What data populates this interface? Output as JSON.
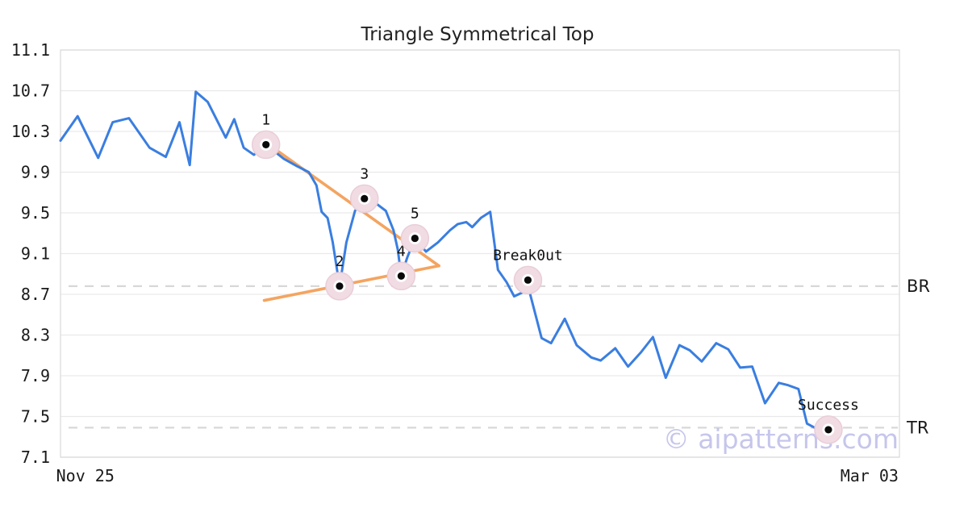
{
  "page": {
    "title": "Triangle Symmetrical Top",
    "watermark": "© aipatterns.com"
  },
  "colors": {
    "price_line": "#3a7ee0",
    "trendline": "#f4a460",
    "grid": "#e9e9e9",
    "spine": "#d9d9d9",
    "dashed_level": "#d8d8d8",
    "marker_halo": "#f1dce3",
    "marker_halo_edge": "#e9cdd8",
    "marker_dot": "#0a0a0a",
    "text": "#1a1a1a",
    "watermark": "#b8b8e8"
  },
  "chart_data": {
    "type": "line",
    "title": "Triangle Symmetrical Top",
    "xlabel": "",
    "ylabel": "",
    "grid": "horizontal",
    "legend": "none",
    "xlim": [
      0,
      98
    ],
    "ylim": [
      7.1,
      11.1
    ],
    "x_ticks": [
      {
        "label": "Nov 25",
        "day": 2.9
      },
      {
        "label": "Mar 03",
        "day": 94.5
      }
    ],
    "y_ticks": [
      11.1,
      10.7,
      10.3,
      9.9,
      9.5,
      9.1,
      8.7,
      8.3,
      7.9,
      7.5,
      7.1
    ],
    "series": [
      {
        "name": "price",
        "points": [
          [
            0,
            10.21
          ],
          [
            2,
            10.45
          ],
          [
            4.4,
            10.04
          ],
          [
            6.1,
            10.39
          ],
          [
            8,
            10.43
          ],
          [
            10.4,
            10.14
          ],
          [
            12.3,
            10.05
          ],
          [
            13.9,
            10.39
          ],
          [
            15.1,
            9.97
          ],
          [
            15.8,
            10.69
          ],
          [
            17.2,
            10.59
          ],
          [
            19.3,
            10.24
          ],
          [
            20.3,
            10.42
          ],
          [
            21.4,
            10.14
          ],
          [
            22.6,
            10.07
          ],
          [
            24,
            10.17
          ],
          [
            26.1,
            10.03
          ],
          [
            27.6,
            9.96
          ],
          [
            29,
            9.9
          ],
          [
            29.9,
            9.77
          ],
          [
            30.5,
            9.51
          ],
          [
            31.2,
            9.45
          ],
          [
            31.8,
            9.21
          ],
          [
            32.6,
            8.78
          ],
          [
            33.4,
            9.21
          ],
          [
            34.4,
            9.52
          ],
          [
            35.5,
            9.64
          ],
          [
            36.9,
            9.59
          ],
          [
            38,
            9.52
          ],
          [
            38.9,
            9.33
          ],
          [
            39.4,
            9.14
          ],
          [
            39.8,
            8.88
          ],
          [
            40.5,
            9.06
          ],
          [
            41.4,
            9.25
          ],
          [
            42.7,
            9.12
          ],
          [
            44.1,
            9.21
          ],
          [
            45.5,
            9.33
          ],
          [
            46.4,
            9.39
          ],
          [
            47.4,
            9.41
          ],
          [
            48.1,
            9.36
          ],
          [
            49.1,
            9.45
          ],
          [
            50.2,
            9.51
          ],
          [
            51.1,
            8.94
          ],
          [
            52.1,
            8.82
          ],
          [
            53,
            8.68
          ],
          [
            54,
            8.72
          ],
          [
            54.8,
            8.72
          ],
          [
            56.2,
            8.27
          ],
          [
            57.3,
            8.22
          ],
          [
            58.9,
            8.46
          ],
          [
            60.3,
            8.2
          ],
          [
            62,
            8.08
          ],
          [
            63.1,
            8.05
          ],
          [
            64.8,
            8.17
          ],
          [
            66.3,
            7.99
          ],
          [
            67.8,
            8.13
          ],
          [
            69.2,
            8.28
          ],
          [
            70.7,
            7.88
          ],
          [
            72.3,
            8.2
          ],
          [
            73.5,
            8.15
          ],
          [
            74.9,
            8.04
          ],
          [
            76.6,
            8.22
          ],
          [
            78,
            8.16
          ],
          [
            79.4,
            7.98
          ],
          [
            80.8,
            7.99
          ],
          [
            82.3,
            7.63
          ],
          [
            83.9,
            7.83
          ],
          [
            84.9,
            7.81
          ],
          [
            86.2,
            7.77
          ],
          [
            87.2,
            7.43
          ],
          [
            88.3,
            7.38
          ],
          [
            89.7,
            7.37
          ]
        ]
      }
    ],
    "pattern_points": [
      {
        "label": "1",
        "day": 24.0,
        "price": 10.17
      },
      {
        "label": "2",
        "day": 32.6,
        "price": 8.78
      },
      {
        "label": "3",
        "day": 35.5,
        "price": 9.64
      },
      {
        "label": "4",
        "day": 39.8,
        "price": 8.88
      },
      {
        "label": "5",
        "day": 41.4,
        "price": 9.25
      },
      {
        "label": "Break0ut",
        "day": 54.6,
        "price": 8.84
      },
      {
        "label": "Success",
        "day": 89.7,
        "price": 7.37
      }
    ],
    "trendlines": [
      {
        "name": "upper-descending",
        "from": [
          24.0,
          10.19
        ],
        "to": [
          44.2,
          8.98
        ]
      },
      {
        "name": "lower-ascending",
        "from": [
          23.8,
          8.64
        ],
        "to": [
          44.2,
          8.98
        ]
      }
    ],
    "levels": [
      {
        "label": "BR",
        "price": 8.78,
        "style": "dashed"
      },
      {
        "label": "TR",
        "price": 7.39,
        "style": "dashed"
      }
    ]
  }
}
